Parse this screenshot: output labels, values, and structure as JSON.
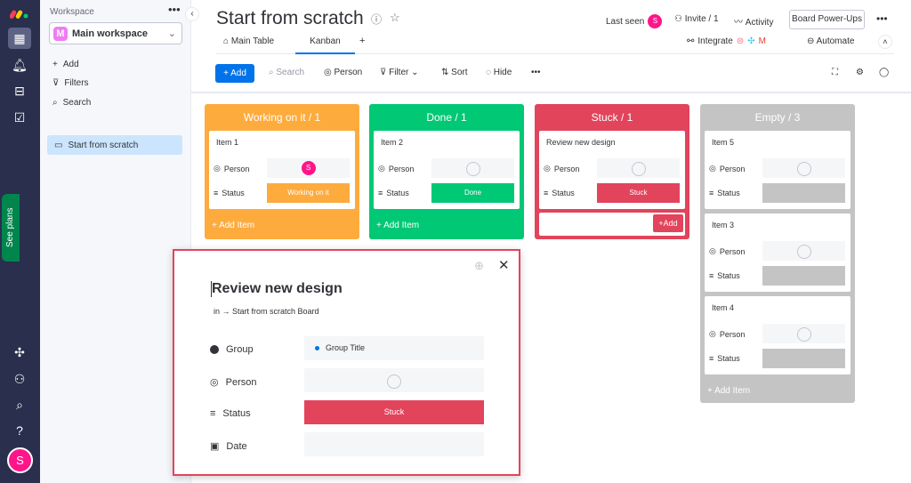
{
  "rail": {
    "icons": [
      "monday-logo",
      "apps-icon",
      "bell-icon",
      "inbox-icon",
      "my-work-icon",
      "puzzle-icon",
      "invite-user-icon",
      "search-icon",
      "help-icon"
    ],
    "avatar": "S",
    "see_plans": "See plans"
  },
  "sidebar": {
    "title": "Workspace",
    "workspace": "Main workspace",
    "workspace_initial": "M",
    "add": "Add",
    "filters": "Filters",
    "search": "Search",
    "board": "Start from scratch"
  },
  "header": {
    "title": "Start from scratch",
    "last_seen": "Last seen",
    "avatar": "S",
    "invite": "Invite / 1",
    "activity": "Activity",
    "power_ups": "Board Power-Ups",
    "integrate": "Integrate",
    "automate": "Automate",
    "tabs": [
      {
        "label": "Main Table"
      },
      {
        "label": "Kanban",
        "active": true
      }
    ],
    "add_tab": "+"
  },
  "toolbar": {
    "add": "Add",
    "search": "Search",
    "person": "Person",
    "filter": "Filter",
    "sort": "Sort",
    "hide": "Hide"
  },
  "colors": {
    "orange": "#fdab3d",
    "green": "#00c875",
    "red": "#e2445c",
    "gray": "#c4c4c4",
    "blue": "#0073ea",
    "pink": "#ff158a"
  },
  "columns": [
    {
      "title": "Working on it / 1",
      "color": "#fdab3d",
      "add": "+ Add Item",
      "cards": [
        {
          "name": "Item 1",
          "person_label": "Person",
          "person": "S",
          "status_label": "Status",
          "status": "Working on it",
          "status_color": "#fdab3d"
        }
      ]
    },
    {
      "title": "Done / 1",
      "color": "#00c875",
      "add": "+ Add Item",
      "cards": [
        {
          "name": "Item 2",
          "person_label": "Person",
          "status_label": "Status",
          "status": "Done",
          "status_color": "#00c875"
        }
      ]
    },
    {
      "title": "Stuck / 1",
      "color": "#e2445c",
      "add": "+Add",
      "cards": [
        {
          "name": "Review new design",
          "person_label": "Person",
          "status_label": "Status",
          "status": "Stuck",
          "status_color": "#e2445c"
        }
      ]
    },
    {
      "title": "Empty / 3",
      "color": "#c4c4c4",
      "add": "+ Add Item",
      "cards": [
        {
          "name": "Item 5",
          "person_label": "Person",
          "status_label": "Status",
          "status_color": "#c4c4c4"
        },
        {
          "name": "Item 3",
          "person_label": "Person",
          "status_label": "Status",
          "status_color": "#c4c4c4"
        },
        {
          "name": "Item 4",
          "person_label": "Person",
          "status_label": "Status",
          "status_color": "#c4c4c4"
        }
      ]
    }
  ],
  "modal": {
    "title": "Review new design",
    "breadcrumb": "in → Start from scratch Board",
    "group_label": "Group",
    "group": "Group Title",
    "person_label": "Person",
    "status_label": "Status",
    "status": "Stuck",
    "date_label": "Date"
  }
}
